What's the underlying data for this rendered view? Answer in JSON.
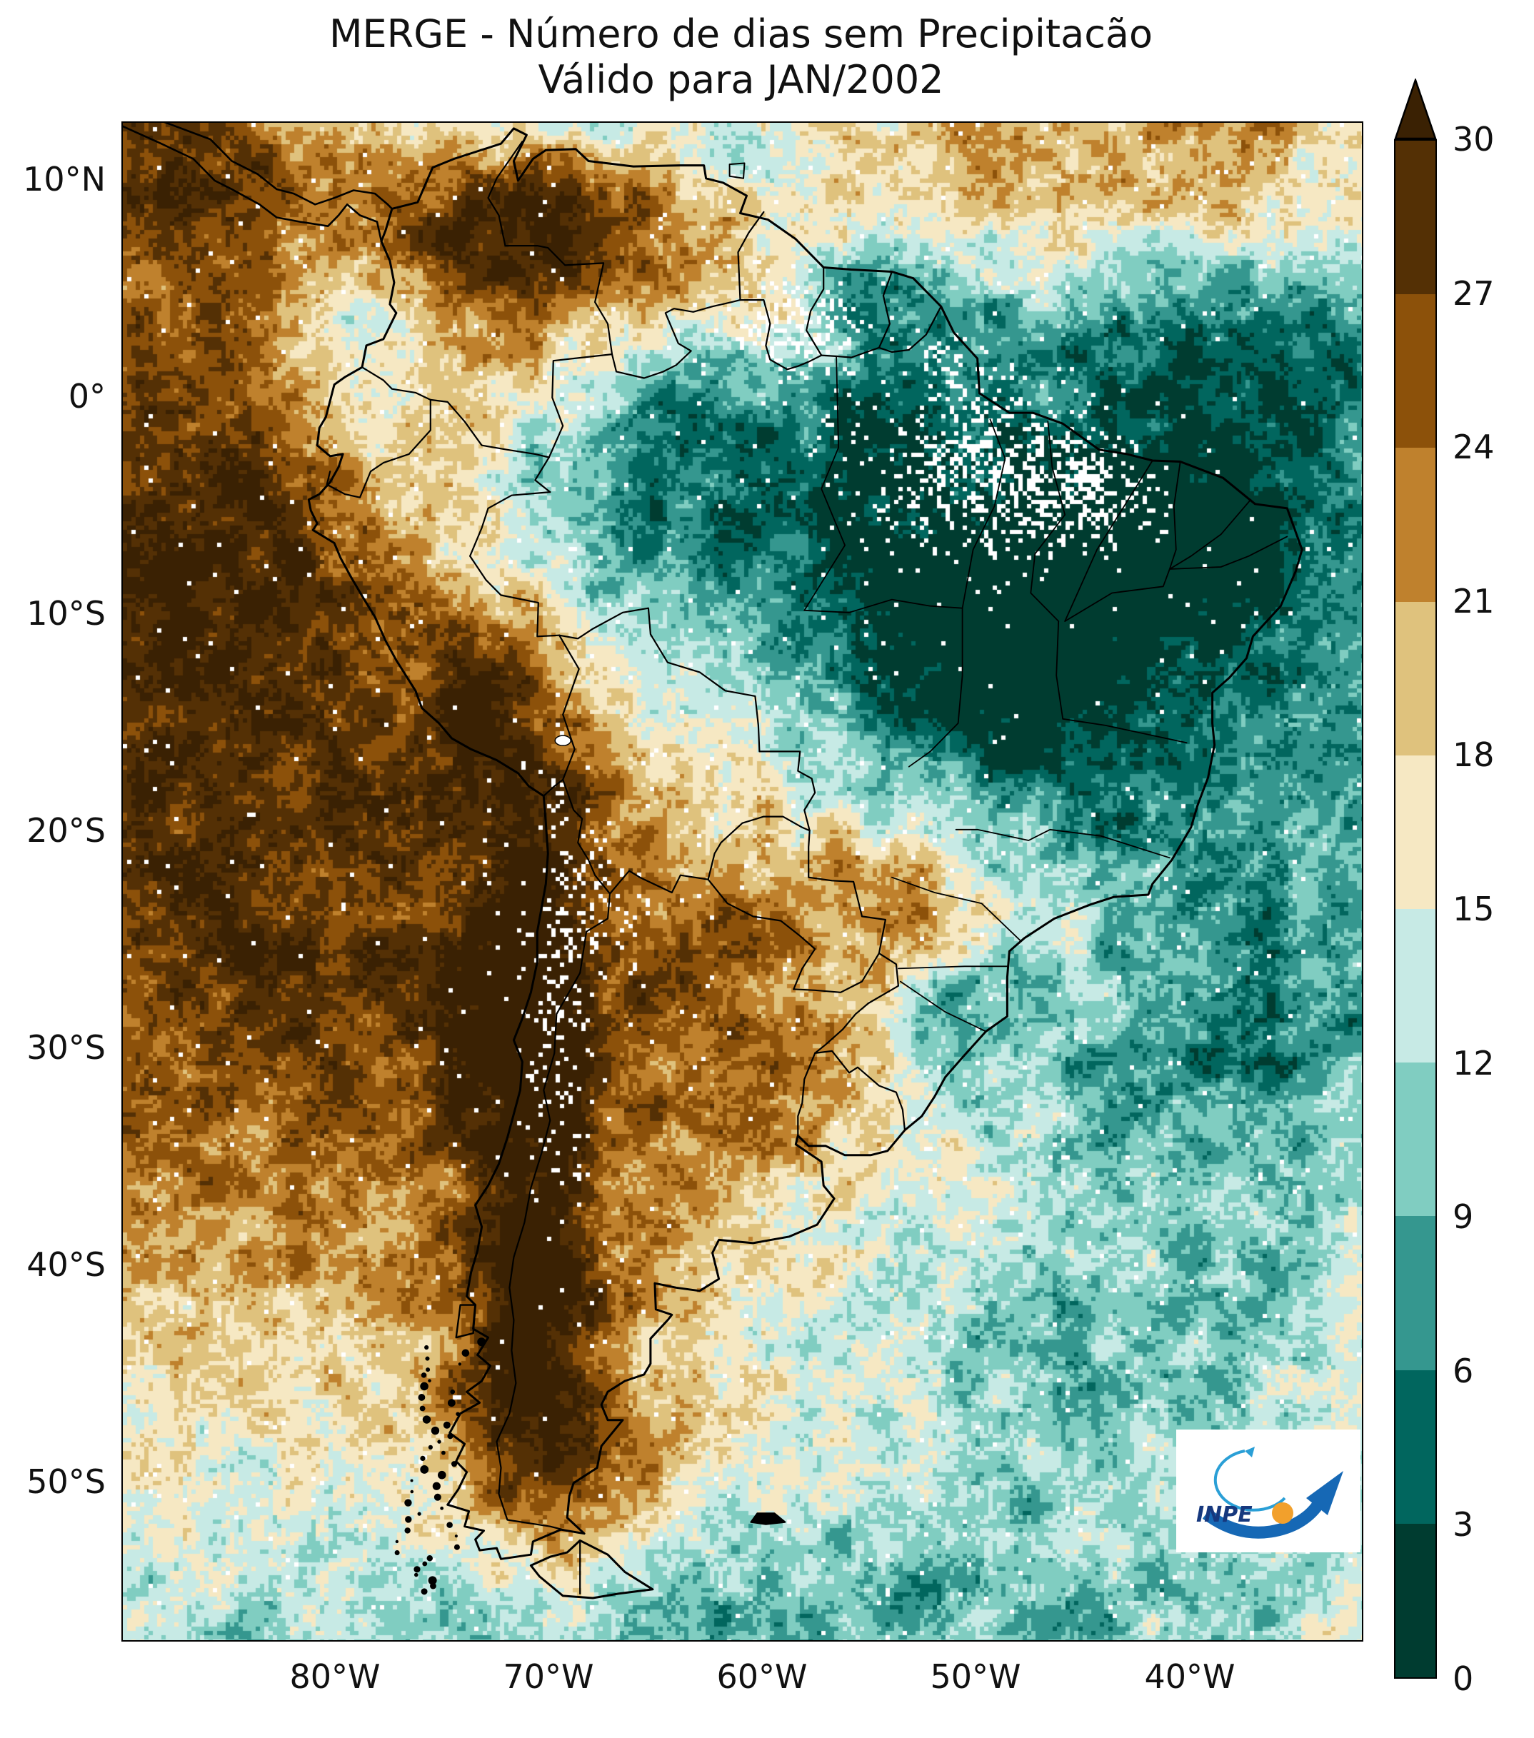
{
  "figure": {
    "title_line1": "MERGE - Número de dias sem Precipitacão",
    "title_line2": "Válido para JAN/2002"
  },
  "axes": {
    "y_ticks": [
      "10°N",
      "0°",
      "10°S",
      "20°S",
      "30°S",
      "40°S",
      "50°S"
    ],
    "x_ticks": [
      "80°W",
      "70°W",
      "60°W",
      "50°W",
      "40°W"
    ]
  },
  "colorbar": {
    "tick_labels": [
      "30",
      "27",
      "24",
      "21",
      "18",
      "15",
      "12",
      "9",
      "6",
      "3",
      "0"
    ],
    "colors_low_to_high": [
      "#003c30",
      "#01665e",
      "#35978f",
      "#80cdc1",
      "#c7eae5",
      "#f6e8c3",
      "#dfc27d",
      "#bf812d",
      "#8c510a",
      "#543005"
    ],
    "over_color": "#3a2103"
  },
  "logo": {
    "label": "INPE",
    "accent_blue": "#1668b5",
    "accent_orange": "#f2a02c"
  },
  "chart_data": {
    "type": "heatmap",
    "title": "MERGE - Número de dias sem Precipitacão",
    "subtitle": "Válido para JAN/2002",
    "region": "South America",
    "variable": "Número de dias sem precipitacão",
    "x_tick_labels": [
      "80°W",
      "70°W",
      "60°W",
      "50°W",
      "40°W"
    ],
    "y_tick_labels": [
      "10°N",
      "0°",
      "10°S",
      "20°S",
      "30°S",
      "40°S",
      "50°S"
    ],
    "colorbar": {
      "min": 0,
      "max": 30,
      "step": 3,
      "ticks": [
        0,
        3,
        6,
        9,
        12,
        15,
        18,
        21,
        24,
        27,
        30
      ],
      "colors_low_to_high": [
        "#003c30",
        "#01665e",
        "#35978f",
        "#80cdc1",
        "#c7eae5",
        "#f6e8c3",
        "#dfc27d",
        "#bf812d",
        "#8c510a",
        "#543005"
      ],
      "over_arrow": true,
      "orientation": "vertical-right"
    },
    "legend_position": "right",
    "notable_patterns": [
      {
        "area": "Pacific Ocean west of Chile/Peru",
        "value_range": [
          24,
          30
        ]
      },
      {
        "area": "Amazon basin / central-north Brazil",
        "value_range": [
          0,
          9
        ]
      },
      {
        "area": "Northeast Brazil and adjacent Atlantic",
        "value_range": [
          3,
          12
        ]
      },
      {
        "area": "Argentina / Chaco",
        "value_range": [
          15,
          21
        ]
      },
      {
        "area": "Chilean coast strip",
        "value_range": [
          27,
          30
        ]
      },
      {
        "area": "Northern Colombia/Venezuela",
        "value_range": [
          24,
          30
        ]
      },
      {
        "area": "Southern Ocean band",
        "value_range": [
          9,
          15
        ]
      }
    ]
  }
}
